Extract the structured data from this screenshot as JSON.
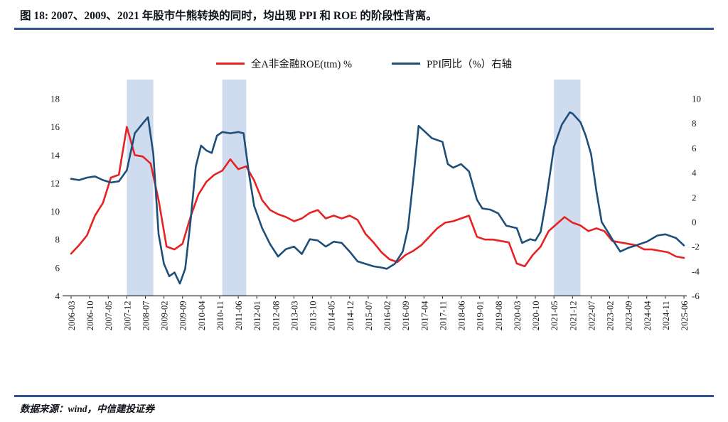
{
  "title": "图 18: 2007、2009、2021 年股市牛熊转换的同时，均出现 PPI 和 ROE 的阶段性背离。",
  "footer": {
    "source": "数据来源：wind，中信建投证券"
  },
  "colors": {
    "roe_line": "#e62222",
    "ppi_line": "#1f4e79",
    "band": "#cfdbee",
    "rule": "#2f5496",
    "axis": "#262626",
    "tick_text": "#1a1a1a"
  },
  "chart_data": {
    "type": "line",
    "title": "",
    "legend_position": "top",
    "grid": false,
    "band_color": "#cfdbee",
    "x_range": [
      "2006-03",
      "2025-06"
    ],
    "left_axis": {
      "label": "全A非金融ROE(ttm) %",
      "ticks": [
        18,
        16,
        14,
        12,
        10,
        8,
        6,
        4
      ],
      "range": [
        4,
        18
      ]
    },
    "right_axis": {
      "label": "PPI同比（%）",
      "ticks": [
        10,
        8,
        6,
        4,
        2,
        0,
        -2,
        -4,
        -6
      ],
      "range": [
        -6,
        10
      ]
    },
    "x_axis": {
      "ticks": [
        "2006-03",
        "2006-10",
        "2007-05",
        "2007-12",
        "2008-07",
        "2009-02",
        "2009-09",
        "2010-04",
        "2010-11",
        "2011-06",
        "2012-01",
        "2012-08",
        "2013-03",
        "2013-10",
        "2014-05",
        "2014-12",
        "2015-07",
        "2016-02",
        "2016-09",
        "2017-04",
        "2017-11",
        "2018-06",
        "2019-01",
        "2019-08",
        "2020-03",
        "2020-10",
        "2021-05",
        "2021-12",
        "2022-07",
        "2023-02",
        "2023-09",
        "2024-04",
        "2024-11",
        "2025-06"
      ]
    },
    "bands": [
      {
        "from": "2007-12",
        "to": "2008-10"
      },
      {
        "from": "2010-12",
        "to": "2011-09"
      },
      {
        "from": "2021-05",
        "to": "2022-03"
      }
    ],
    "series": [
      {
        "name": "全A非金融ROE(ttm) %",
        "axis": "left",
        "color": "#e62222",
        "points": [
          [
            "2006-03",
            7.0
          ],
          [
            "2006-06",
            7.6
          ],
          [
            "2006-09",
            8.3
          ],
          [
            "2006-12",
            9.7
          ],
          [
            "2007-03",
            10.6
          ],
          [
            "2007-06",
            12.4
          ],
          [
            "2007-09",
            12.6
          ],
          [
            "2007-12",
            16.0
          ],
          [
            "2008-03",
            14.0
          ],
          [
            "2008-06",
            13.9
          ],
          [
            "2008-09",
            13.4
          ],
          [
            "2008-12",
            10.8
          ],
          [
            "2009-03",
            7.5
          ],
          [
            "2009-06",
            7.3
          ],
          [
            "2009-09",
            7.7
          ],
          [
            "2009-12",
            9.6
          ],
          [
            "2010-03",
            11.2
          ],
          [
            "2010-06",
            12.1
          ],
          [
            "2010-09",
            12.6
          ],
          [
            "2010-12",
            12.9
          ],
          [
            "2011-03",
            13.7
          ],
          [
            "2011-06",
            13.0
          ],
          [
            "2011-09",
            13.2
          ],
          [
            "2011-12",
            12.2
          ],
          [
            "2012-03",
            10.8
          ],
          [
            "2012-06",
            10.1
          ],
          [
            "2012-09",
            9.8
          ],
          [
            "2012-12",
            9.6
          ],
          [
            "2013-03",
            9.3
          ],
          [
            "2013-06",
            9.5
          ],
          [
            "2013-09",
            9.9
          ],
          [
            "2013-12",
            10.1
          ],
          [
            "2014-03",
            9.5
          ],
          [
            "2014-06",
            9.7
          ],
          [
            "2014-09",
            9.5
          ],
          [
            "2014-12",
            9.7
          ],
          [
            "2015-03",
            9.4
          ],
          [
            "2015-06",
            8.4
          ],
          [
            "2015-09",
            7.8
          ],
          [
            "2015-12",
            7.1
          ],
          [
            "2016-03",
            6.6
          ],
          [
            "2016-06",
            6.4
          ],
          [
            "2016-09",
            6.9
          ],
          [
            "2016-12",
            7.2
          ],
          [
            "2017-03",
            7.6
          ],
          [
            "2017-06",
            8.2
          ],
          [
            "2017-09",
            8.8
          ],
          [
            "2017-12",
            9.2
          ],
          [
            "2018-03",
            9.3
          ],
          [
            "2018-06",
            9.5
          ],
          [
            "2018-09",
            9.7
          ],
          [
            "2018-12",
            8.2
          ],
          [
            "2019-03",
            8.0
          ],
          [
            "2019-06",
            8.0
          ],
          [
            "2019-09",
            7.9
          ],
          [
            "2019-12",
            7.8
          ],
          [
            "2020-03",
            6.3
          ],
          [
            "2020-06",
            6.1
          ],
          [
            "2020-09",
            6.9
          ],
          [
            "2020-12",
            7.5
          ],
          [
            "2021-03",
            8.6
          ],
          [
            "2021-06",
            9.1
          ],
          [
            "2021-09",
            9.6
          ],
          [
            "2021-12",
            9.2
          ],
          [
            "2022-03",
            9.0
          ],
          [
            "2022-06",
            8.6
          ],
          [
            "2022-09",
            8.8
          ],
          [
            "2022-12",
            8.6
          ],
          [
            "2023-03",
            7.9
          ],
          [
            "2023-06",
            7.8
          ],
          [
            "2023-09",
            7.7
          ],
          [
            "2023-12",
            7.6
          ],
          [
            "2024-03",
            7.3
          ],
          [
            "2024-06",
            7.3
          ],
          [
            "2024-09",
            7.2
          ],
          [
            "2024-12",
            7.1
          ],
          [
            "2025-03",
            6.8
          ],
          [
            "2025-06",
            6.7
          ]
        ]
      },
      {
        "name": "PPI同比（%）右轴",
        "axis": "right",
        "color": "#1f4e79",
        "points": [
          [
            "2006-03",
            3.5
          ],
          [
            "2006-06",
            3.4
          ],
          [
            "2006-09",
            3.6
          ],
          [
            "2006-12",
            3.7
          ],
          [
            "2007-03",
            3.4
          ],
          [
            "2007-06",
            3.2
          ],
          [
            "2007-09",
            3.3
          ],
          [
            "2007-12",
            4.2
          ],
          [
            "2008-03",
            7.2
          ],
          [
            "2008-06",
            8.0
          ],
          [
            "2008-08",
            8.5
          ],
          [
            "2008-10",
            5.5
          ],
          [
            "2008-12",
            -1.0
          ],
          [
            "2009-02",
            -3.4
          ],
          [
            "2009-04",
            -4.4
          ],
          [
            "2009-06",
            -4.1
          ],
          [
            "2009-08",
            -5.0
          ],
          [
            "2009-10",
            -3.8
          ],
          [
            "2009-12",
            0.0
          ],
          [
            "2010-02",
            4.5
          ],
          [
            "2010-04",
            6.2
          ],
          [
            "2010-06",
            5.8
          ],
          [
            "2010-08",
            5.6
          ],
          [
            "2010-10",
            7.0
          ],
          [
            "2010-12",
            7.3
          ],
          [
            "2011-03",
            7.2
          ],
          [
            "2011-06",
            7.3
          ],
          [
            "2011-08",
            7.2
          ],
          [
            "2011-10",
            4.0
          ],
          [
            "2011-12",
            1.3
          ],
          [
            "2012-03",
            -0.5
          ],
          [
            "2012-06",
            -1.8
          ],
          [
            "2012-09",
            -2.8
          ],
          [
            "2012-12",
            -2.2
          ],
          [
            "2013-03",
            -2.0
          ],
          [
            "2013-06",
            -2.6
          ],
          [
            "2013-09",
            -1.4
          ],
          [
            "2013-12",
            -1.5
          ],
          [
            "2014-03",
            -2.0
          ],
          [
            "2014-06",
            -1.6
          ],
          [
            "2014-09",
            -1.7
          ],
          [
            "2014-12",
            -2.4
          ],
          [
            "2015-03",
            -3.2
          ],
          [
            "2015-06",
            -3.4
          ],
          [
            "2015-09",
            -3.6
          ],
          [
            "2015-12",
            -3.7
          ],
          [
            "2016-02",
            -3.8
          ],
          [
            "2016-05",
            -3.4
          ],
          [
            "2016-08",
            -2.4
          ],
          [
            "2016-10",
            -0.5
          ],
          [
            "2016-12",
            3.5
          ],
          [
            "2017-02",
            7.8
          ],
          [
            "2017-04",
            7.4
          ],
          [
            "2017-07",
            6.8
          ],
          [
            "2017-11",
            6.5
          ],
          [
            "2018-01",
            4.7
          ],
          [
            "2018-03",
            4.4
          ],
          [
            "2018-06",
            4.7
          ],
          [
            "2018-09",
            4.1
          ],
          [
            "2018-12",
            1.8
          ],
          [
            "2019-02",
            1.1
          ],
          [
            "2019-05",
            1.0
          ],
          [
            "2019-08",
            0.7
          ],
          [
            "2019-11",
            -0.3
          ],
          [
            "2020-03",
            -0.5
          ],
          [
            "2020-05",
            -1.7
          ],
          [
            "2020-08",
            -1.4
          ],
          [
            "2020-10",
            -1.5
          ],
          [
            "2020-12",
            -0.8
          ],
          [
            "2021-02",
            1.7
          ],
          [
            "2021-05",
            6.1
          ],
          [
            "2021-08",
            7.9
          ],
          [
            "2021-11",
            8.9
          ],
          [
            "2021-12",
            8.8
          ],
          [
            "2022-03",
            8.1
          ],
          [
            "2022-05",
            7.0
          ],
          [
            "2022-07",
            5.5
          ],
          [
            "2022-09",
            2.5
          ],
          [
            "2022-11",
            0.0
          ],
          [
            "2023-01",
            -0.7
          ],
          [
            "2023-03",
            -1.4
          ],
          [
            "2023-06",
            -2.4
          ],
          [
            "2023-09",
            -2.1
          ],
          [
            "2023-12",
            -1.9
          ],
          [
            "2024-04",
            -1.6
          ],
          [
            "2024-08",
            -1.1
          ],
          [
            "2024-11",
            -1.0
          ],
          [
            "2025-03",
            -1.3
          ],
          [
            "2025-06",
            -1.9
          ]
        ]
      }
    ]
  }
}
